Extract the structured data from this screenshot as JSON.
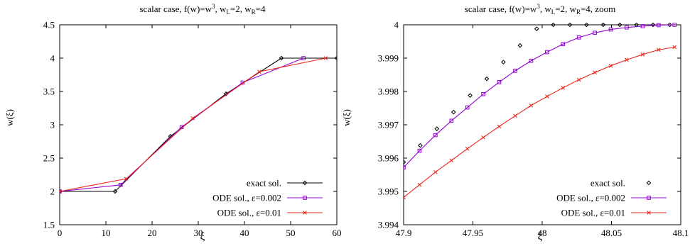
{
  "chart_data": [
    {
      "type": "line",
      "title": "scalar case, f(w)=w³, w_L=2, w_R=4",
      "title_parts": {
        "a": "scalar case, f(w)=w",
        "a_sup": "3",
        "b": ", w",
        "b_sub": "L",
        "c": "=2, w",
        "c_sub": "R",
        "d": "=4"
      },
      "xlabel": "ξ",
      "ylabel": "w(ξ)",
      "xlim": [
        0,
        60
      ],
      "ylim": [
        1.5,
        4.5
      ],
      "xticks": [
        "0",
        "10",
        "20",
        "30",
        "40",
        "50",
        "60"
      ],
      "yticks": [
        "1.5",
        "2",
        "2.5",
        "3",
        "3.5",
        "4",
        "4.5"
      ],
      "grid": false,
      "legend_position": "bottom-right",
      "series": [
        {
          "name": "exact sol.",
          "color": "#000000",
          "marker": "diamond",
          "line": true,
          "x": [
            0,
            12,
            24,
            36,
            48,
            60
          ],
          "y": [
            2.0,
            2.0,
            2.828,
            3.464,
            4.0,
            4.0
          ]
        },
        {
          "name": "ODE sol., ε=0.002",
          "color": "#9400d3",
          "marker": "square",
          "line": true,
          "x": [
            0,
            13.2,
            26.4,
            39.6,
            52.8
          ],
          "y": [
            2.0,
            2.098,
            2.966,
            3.633,
            4.0
          ]
        },
        {
          "name": "ODE sol., ε=0.01",
          "color": "#e8281e",
          "marker": "cross",
          "line": true,
          "x": [
            0,
            14.4,
            28.8,
            43.2,
            57.6
          ],
          "y": [
            2.0,
            2.19,
            3.098,
            3.795,
            4.0
          ]
        }
      ]
    },
    {
      "type": "line",
      "title": "scalar case, f(w)=w³, w_L=2, w_R=4, zoom",
      "title_parts": {
        "a": "scalar case, f(w)=w",
        "a_sup": "3",
        "b": ", w",
        "b_sub": "L",
        "c": "=2, w",
        "c_sub": "R",
        "d": "=4, zoom"
      },
      "xlabel": "ξ",
      "ylabel": "w(ξ)",
      "xlim": [
        47.9,
        48.1
      ],
      "ylim": [
        3.994,
        4.0
      ],
      "xticks": [
        "47.9",
        "47.95",
        "48",
        "48.05",
        "48.1"
      ],
      "yticks": [
        "3.994",
        "3.995",
        "3.996",
        "3.997",
        "3.998",
        "3.999",
        "4"
      ],
      "grid": false,
      "legend_position": "bottom-right",
      "series": [
        {
          "name": "exact sol.",
          "color": "#000000",
          "marker": "diamond",
          "line": false,
          "x": [
            47.9,
            47.912,
            47.924,
            47.936,
            47.948,
            47.96,
            47.972,
            47.984,
            47.996,
            48.008,
            48.02,
            48.032,
            48.044,
            48.056,
            48.068,
            48.08,
            48.092
          ],
          "y": [
            3.99588,
            3.99638,
            3.99688,
            3.99738,
            3.99788,
            3.99838,
            3.99888,
            3.99938,
            3.99988,
            4.0,
            4.0,
            4.0,
            4.0,
            4.0,
            4.0,
            4.0,
            4.0
          ]
        },
        {
          "name": "ODE sol., ε=0.002",
          "color": "#9400d3",
          "marker": "square",
          "line": true,
          "x": [
            47.9,
            47.9115,
            47.923,
            47.9345,
            47.946,
            47.9575,
            47.969,
            47.9805,
            47.992,
            48.0035,
            48.015,
            48.0265,
            48.038,
            48.0495,
            48.061,
            48.0725,
            48.084,
            48.0955
          ],
          "y": [
            3.99572,
            3.99622,
            3.99669,
            3.99712,
            3.99752,
            3.99792,
            3.99828,
            3.99862,
            3.99892,
            3.99918,
            3.99942,
            3.99962,
            3.99976,
            3.99986,
            3.99992,
            3.99996,
            3.99999,
            4.0
          ]
        },
        {
          "name": "ODE sol., ε=0.01",
          "color": "#e8281e",
          "marker": "cross",
          "line": true,
          "x": [
            47.9,
            47.9115,
            47.923,
            47.9345,
            47.946,
            47.9575,
            47.969,
            47.9805,
            47.992,
            48.0035,
            48.015,
            48.0265,
            48.038,
            48.0495,
            48.061,
            48.0725,
            48.084,
            48.0955
          ],
          "y": [
            3.99482,
            3.9952,
            3.99558,
            3.99593,
            3.99628,
            3.99662,
            3.99695,
            3.99727,
            3.99758,
            3.99785,
            3.99811,
            3.99835,
            3.99857,
            3.99877,
            3.99895,
            3.99911,
            3.99925,
            3.99933
          ]
        }
      ]
    }
  ]
}
